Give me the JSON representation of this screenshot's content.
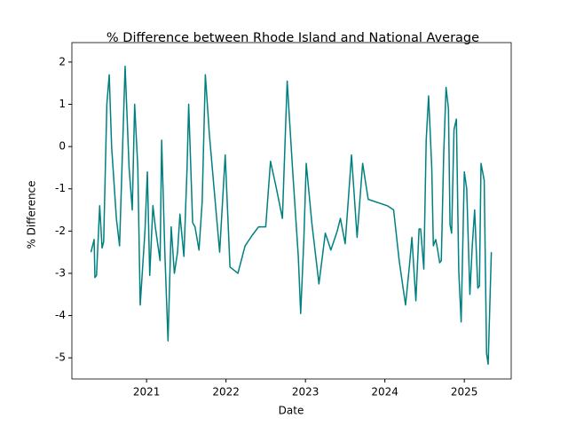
{
  "chart_data": {
    "type": "line",
    "title": "% Difference between Rhode Island and National Average",
    "x_label": "Date",
    "y_label": "% Difference",
    "series": [
      {
        "name": "% Difference",
        "color": "#008080",
        "x": [
          2020.3,
          2020.34,
          2020.35,
          2020.37,
          2020.41,
          2020.44,
          2020.46,
          2020.5,
          2020.53,
          2020.56,
          2020.62,
          2020.66,
          2020.73,
          2020.78,
          2020.82,
          2020.85,
          2020.89,
          2020.92,
          2020.98,
          2021.01,
          2021.04,
          2021.08,
          2021.11,
          2021.17,
          2021.19,
          2021.23,
          2021.27,
          2021.31,
          2021.35,
          2021.39,
          2021.42,
          2021.47,
          2021.51,
          2021.53,
          2021.58,
          2021.61,
          2021.66,
          2021.7,
          2021.74,
          2021.79,
          2021.85,
          2021.92,
          2021.99,
          2022.05,
          2022.15,
          2022.24,
          2022.33,
          2022.41,
          2022.5,
          2022.56,
          2022.63,
          2022.71,
          2022.77,
          2022.84,
          2022.91,
          2022.94,
          2022.98,
          2023.01,
          2023.08,
          2023.17,
          2023.25,
          2023.32,
          2023.4,
          2023.44,
          2023.5,
          2023.58,
          2023.65,
          2023.72,
          2023.79,
          2024.03,
          2024.11,
          2024.18,
          2024.26,
          2024.31,
          2024.34,
          2024.39,
          2024.43,
          2024.45,
          2024.49,
          2024.52,
          2024.55,
          2024.59,
          2024.61,
          2024.64,
          2024.66,
          2024.69,
          2024.71,
          2024.74,
          2024.77,
          2024.8,
          2024.82,
          2024.84,
          2024.87,
          2024.9,
          2024.93,
          2024.96,
          2025.0,
          2025.03,
          2025.07,
          2025.1,
          2025.13,
          2025.17,
          2025.19,
          2025.21,
          2025.25,
          2025.28,
          2025.3,
          2025.34
        ],
        "values": [
          -2.5,
          -2.2,
          -3.1,
          -3.05,
          -1.4,
          -2.4,
          -2.25,
          1.0,
          1.7,
          0,
          -1.7,
          -2.35,
          1.9,
          -0.5,
          -1.5,
          1.0,
          -0.5,
          -3.75,
          -2.0,
          -0.6,
          -3.05,
          -1.4,
          -1.9,
          -2.7,
          0.15,
          -2.5,
          -4.6,
          -1.9,
          -3.0,
          -2.5,
          -1.6,
          -2.6,
          -0.5,
          1.0,
          -1.8,
          -1.9,
          -2.45,
          -1.3,
          1.7,
          0.3,
          -1.0,
          -2.5,
          -0.2,
          -2.85,
          -3.0,
          -2.35,
          -2.1,
          -1.9,
          -1.9,
          -0.35,
          -0.95,
          -1.7,
          1.55,
          -0.6,
          -2.6,
          -3.95,
          -2.2,
          -0.4,
          -1.8,
          -3.25,
          -2.05,
          -2.45,
          -2.0,
          -1.7,
          -2.3,
          -0.2,
          -2.15,
          -0.4,
          -1.25,
          -1.4,
          -1.5,
          -2.7,
          -3.75,
          -2.8,
          -2.15,
          -3.65,
          -1.95,
          -1.95,
          -2.9,
          0.15,
          1.2,
          -0.5,
          -2.35,
          -2.2,
          -2.4,
          -2.75,
          -2.7,
          -0.2,
          1.4,
          0.9,
          -1.85,
          -2.05,
          0.4,
          0.65,
          -2.95,
          -4.15,
          -0.6,
          -1.0,
          -3.5,
          -2.35,
          -1.5,
          -3.35,
          -3.3,
          -0.4,
          -0.8,
          -4.9,
          -5.15,
          -2.5
        ]
      }
    ],
    "xlim": [
      2020.06,
      2025.59
    ],
    "xticks": [
      2021,
      2022,
      2023,
      2024,
      2025
    ],
    "ylim": [
      -5.5,
      2.46
    ],
    "yticks": [
      -5,
      -4,
      -3,
      -2,
      -1,
      0,
      1,
      2
    ]
  }
}
